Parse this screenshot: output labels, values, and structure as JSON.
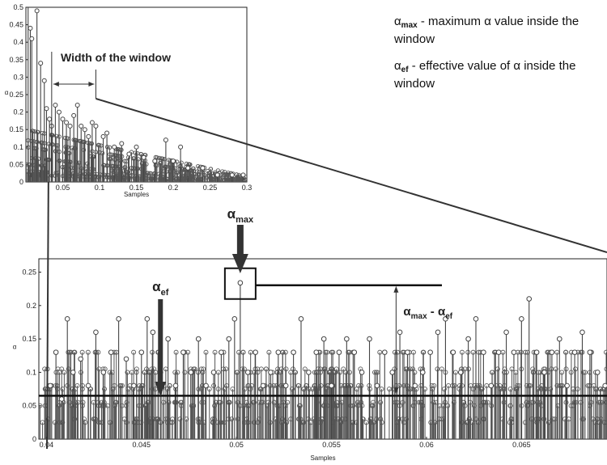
{
  "chart_data": [
    {
      "type": "stem",
      "panel": "overview",
      "xlabel": "Samples",
      "ylabel": "α",
      "xlim": [
        0,
        0.3
      ],
      "ylim": [
        0,
        0.5
      ],
      "xticks": [
        "0.05",
        "0.1",
        "0.15",
        "0.2",
        "0.25",
        "0.3"
      ],
      "xtick_values": [
        0.05,
        0.1,
        0.15,
        0.2,
        0.25,
        0.3
      ],
      "yticks": [
        "0",
        "0.05",
        "0.1",
        "0.15",
        "0.2",
        "0.25",
        "0.3",
        "0.35",
        "0.4",
        "0.45",
        "0.5"
      ],
      "ytick_values": [
        0,
        0.05,
        0.1,
        0.15,
        0.2,
        0.25,
        0.3,
        0.35,
        0.4,
        0.45,
        0.5
      ],
      "stems": [
        {
          "x": 0.003,
          "y": 0.51
        },
        {
          "x": 0.006,
          "y": 0.44
        },
        {
          "x": 0.008,
          "y": 0.41
        },
        {
          "x": 0.015,
          "y": 0.49
        },
        {
          "x": 0.02,
          "y": 0.34
        },
        {
          "x": 0.025,
          "y": 0.29
        },
        {
          "x": 0.028,
          "y": 0.21
        },
        {
          "x": 0.032,
          "y": 0.18
        },
        {
          "x": 0.035,
          "y": 0.16
        },
        {
          "x": 0.04,
          "y": 0.22
        },
        {
          "x": 0.045,
          "y": 0.2
        },
        {
          "x": 0.05,
          "y": 0.18
        },
        {
          "x": 0.055,
          "y": 0.17
        },
        {
          "x": 0.06,
          "y": 0.16
        },
        {
          "x": 0.065,
          "y": 0.19
        },
        {
          "x": 0.07,
          "y": 0.22
        },
        {
          "x": 0.075,
          "y": 0.16
        },
        {
          "x": 0.08,
          "y": 0.15
        },
        {
          "x": 0.085,
          "y": 0.13
        },
        {
          "x": 0.09,
          "y": 0.17
        },
        {
          "x": 0.095,
          "y": 0.16
        },
        {
          "x": 0.105,
          "y": 0.13
        },
        {
          "x": 0.11,
          "y": 0.14
        },
        {
          "x": 0.12,
          "y": 0.1
        },
        {
          "x": 0.13,
          "y": 0.11
        },
        {
          "x": 0.14,
          "y": 0.08
        },
        {
          "x": 0.15,
          "y": 0.1
        },
        {
          "x": 0.16,
          "y": 0.07
        },
        {
          "x": 0.175,
          "y": 0.06
        },
        {
          "x": 0.19,
          "y": 0.12
        },
        {
          "x": 0.2,
          "y": 0.06
        },
        {
          "x": 0.21,
          "y": 0.1
        },
        {
          "x": 0.22,
          "y": 0.04
        },
        {
          "x": 0.24,
          "y": 0.04
        },
        {
          "x": 0.26,
          "y": 0.02
        },
        {
          "x": 0.28,
          "y": 0.02
        },
        {
          "x": 0.295,
          "y": 0.02
        }
      ],
      "annotations": [
        {
          "text": "Width of the window",
          "from_x": 0.035,
          "to_x": 0.095,
          "y": 0.33
        }
      ]
    },
    {
      "type": "stem",
      "panel": "zoom",
      "xlabel": "Samples",
      "ylabel": "α",
      "xlim": [
        0.0396,
        0.0695
      ],
      "ylim": [
        0,
        0.27
      ],
      "xticks": [
        "0.04",
        "0.045",
        "0.05",
        "0.055",
        "0.06",
        "0.065"
      ],
      "xtick_values": [
        0.04,
        0.045,
        0.05,
        0.055,
        0.06,
        0.065
      ],
      "yticks": [
        "0",
        "0.05",
        "0.1",
        "0.15",
        "0.2",
        "0.25"
      ],
      "ytick_values": [
        0,
        0.05,
        0.1,
        0.15,
        0.2,
        0.25
      ],
      "stems": [
        {
          "x": 0.0402,
          "y": 0.08
        },
        {
          "x": 0.0405,
          "y": 0.13
        },
        {
          "x": 0.0408,
          "y": 0.06
        },
        {
          "x": 0.0411,
          "y": 0.18
        },
        {
          "x": 0.0414,
          "y": 0.1
        },
        {
          "x": 0.0418,
          "y": 0.12
        },
        {
          "x": 0.0422,
          "y": 0.08
        },
        {
          "x": 0.0426,
          "y": 0.16
        },
        {
          "x": 0.043,
          "y": 0.1
        },
        {
          "x": 0.0434,
          "y": 0.13
        },
        {
          "x": 0.0438,
          "y": 0.18
        },
        {
          "x": 0.0442,
          "y": 0.12
        },
        {
          "x": 0.0446,
          "y": 0.08
        },
        {
          "x": 0.045,
          "y": 0.13
        },
        {
          "x": 0.0453,
          "y": 0.18
        },
        {
          "x": 0.0456,
          "y": 0.16
        },
        {
          "x": 0.046,
          "y": 0.1
        },
        {
          "x": 0.0464,
          "y": 0.15
        },
        {
          "x": 0.0468,
          "y": 0.08
        },
        {
          "x": 0.0472,
          "y": 0.13
        },
        {
          "x": 0.0476,
          "y": 0.1
        },
        {
          "x": 0.048,
          "y": 0.15
        },
        {
          "x": 0.0484,
          "y": 0.08
        },
        {
          "x": 0.0488,
          "y": 0.1
        },
        {
          "x": 0.0492,
          "y": 0.13
        },
        {
          "x": 0.0496,
          "y": 0.15
        },
        {
          "x": 0.0499,
          "y": 0.18
        },
        {
          "x": 0.0502,
          "y": 0.234
        },
        {
          "x": 0.0506,
          "y": 0.1
        },
        {
          "x": 0.051,
          "y": 0.13
        },
        {
          "x": 0.0514,
          "y": 0.08
        },
        {
          "x": 0.0518,
          "y": 0.1
        },
        {
          "x": 0.0522,
          "y": 0.13
        },
        {
          "x": 0.0526,
          "y": 0.08
        },
        {
          "x": 0.053,
          "y": 0.13
        },
        {
          "x": 0.0534,
          "y": 0.18
        },
        {
          "x": 0.0538,
          "y": 0.1
        },
        {
          "x": 0.0542,
          "y": 0.13
        },
        {
          "x": 0.0546,
          "y": 0.15
        },
        {
          "x": 0.055,
          "y": 0.08
        },
        {
          "x": 0.0554,
          "y": 0.13
        },
        {
          "x": 0.0558,
          "y": 0.15
        },
        {
          "x": 0.0562,
          "y": 0.13
        },
        {
          "x": 0.0566,
          "y": 0.1
        },
        {
          "x": 0.057,
          "y": 0.15
        },
        {
          "x": 0.0574,
          "y": 0.08
        },
        {
          "x": 0.0578,
          "y": 0.13
        },
        {
          "x": 0.0582,
          "y": 0.1
        },
        {
          "x": 0.0586,
          "y": 0.16
        },
        {
          "x": 0.059,
          "y": 0.13
        },
        {
          "x": 0.0594,
          "y": 0.08
        },
        {
          "x": 0.0598,
          "y": 0.1
        },
        {
          "x": 0.0602,
          "y": 0.13
        },
        {
          "x": 0.0606,
          "y": 0.16
        },
        {
          "x": 0.061,
          "y": 0.18
        },
        {
          "x": 0.0614,
          "y": 0.13
        },
        {
          "x": 0.0618,
          "y": 0.1
        },
        {
          "x": 0.0622,
          "y": 0.15
        },
        {
          "x": 0.0626,
          "y": 0.18
        },
        {
          "x": 0.063,
          "y": 0.13
        },
        {
          "x": 0.0634,
          "y": 0.08
        },
        {
          "x": 0.0638,
          "y": 0.13
        },
        {
          "x": 0.0642,
          "y": 0.16
        },
        {
          "x": 0.0646,
          "y": 0.13
        },
        {
          "x": 0.065,
          "y": 0.18
        },
        {
          "x": 0.0654,
          "y": 0.21
        },
        {
          "x": 0.0658,
          "y": 0.13
        },
        {
          "x": 0.0662,
          "y": 0.1
        },
        {
          "x": 0.0666,
          "y": 0.13
        },
        {
          "x": 0.067,
          "y": 0.15
        },
        {
          "x": 0.0674,
          "y": 0.08
        },
        {
          "x": 0.0678,
          "y": 0.13
        },
        {
          "x": 0.0682,
          "y": 0.16
        },
        {
          "x": 0.0686,
          "y": 0.13
        },
        {
          "x": 0.069,
          "y": 0.1
        },
        {
          "x": 0.0694,
          "y": 0.08
        }
      ],
      "reference_lines": [
        {
          "name": "alpha_ef",
          "y": 0.065
        },
        {
          "name": "alpha_max",
          "y": 0.234
        }
      ],
      "annotations": {
        "alpha_max": {
          "base": "α",
          "sub": "max",
          "x": 0.0502
        },
        "alpha_ef": {
          "base": "α",
          "sub": "ef",
          "x": 0.046
        },
        "difference": {
          "base1": "α",
          "sub1": "max",
          "mid": " - ",
          "base2": "α",
          "sub2": "ef",
          "x": 0.0584
        }
      }
    }
  ],
  "legend": [
    {
      "symbol": "α",
      "sub": "max",
      "text": " - maximum α value inside the window"
    },
    {
      "symbol": "α",
      "sub": "ef",
      "text": " - effective value of α inside the window"
    }
  ]
}
